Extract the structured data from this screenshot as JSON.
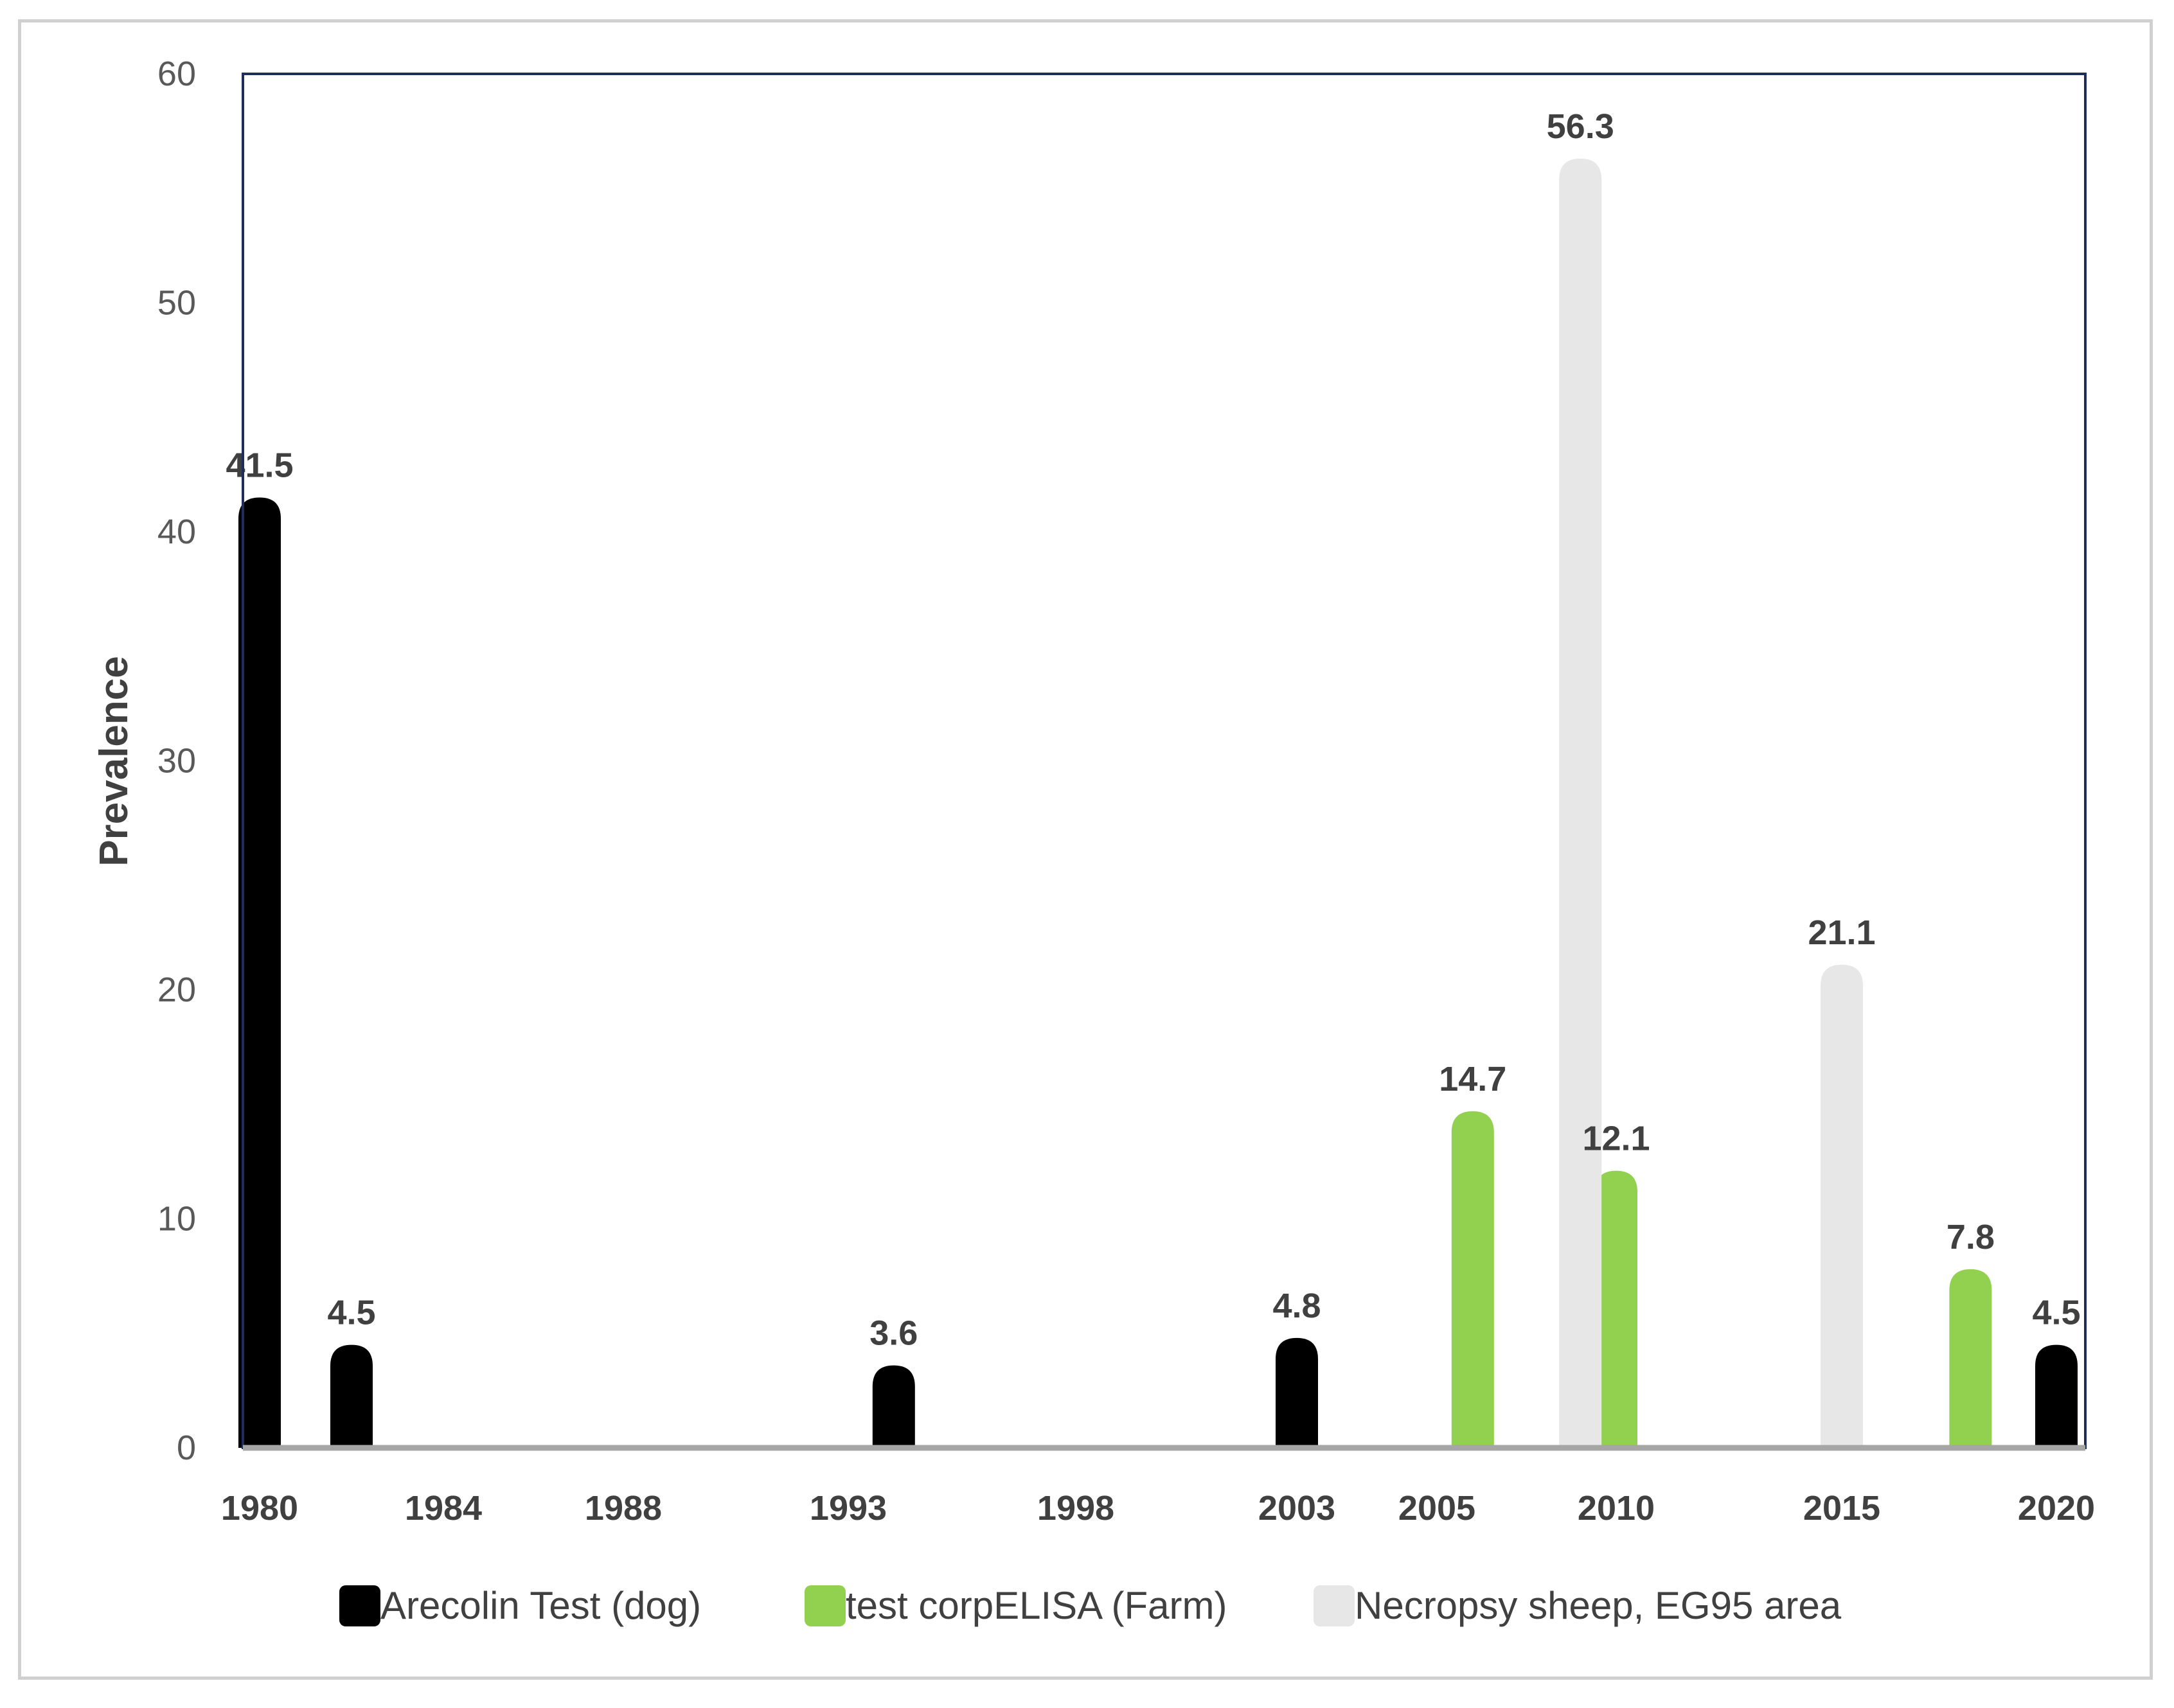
{
  "chart_data": {
    "type": "bar",
    "ylabel": "Prevalence",
    "ylim": [
      0,
      60
    ],
    "yticks": [
      "0",
      "10",
      "20",
      "30",
      "40",
      "50",
      "60"
    ],
    "xlim": [
      1980,
      2020
    ],
    "xticks": [
      "1980",
      "1984",
      "1988",
      "1993",
      "1998",
      "2003",
      "2005",
      "2010",
      "2015",
      "2020"
    ],
    "legend_position": "bottom",
    "series": [
      {
        "name": "Arecolin Test (dog)",
        "color": "#000000",
        "points": [
          {
            "x": 1980,
            "value": 41.5,
            "label": "41.5"
          },
          {
            "x": 1982,
            "value": 4.5,
            "label": "4.5"
          },
          {
            "x": 1994,
            "value": 3.6,
            "label": "3.6"
          },
          {
            "x": 2003,
            "value": 4.8,
            "label": "4.8"
          },
          {
            "x": 2020,
            "value": 4.5,
            "label": "4.5"
          }
        ]
      },
      {
        "name": "test corpELISA (Farm)",
        "color": "#92d050",
        "points": [
          {
            "x": 2006,
            "value": 14.7,
            "label": "14.7"
          },
          {
            "x": 2010,
            "value": 12.1,
            "label": "12.1"
          },
          {
            "x": 2018,
            "value": 7.8,
            "label": "7.8"
          }
        ]
      },
      {
        "name": "Necropsy sheep, EG95 area",
        "color": "#e7e7e7",
        "points": [
          {
            "x": 2009,
            "value": 56.3,
            "label": "56.3"
          },
          {
            "x": 2015,
            "value": 21.1,
            "label": "21.1"
          }
        ]
      }
    ]
  }
}
